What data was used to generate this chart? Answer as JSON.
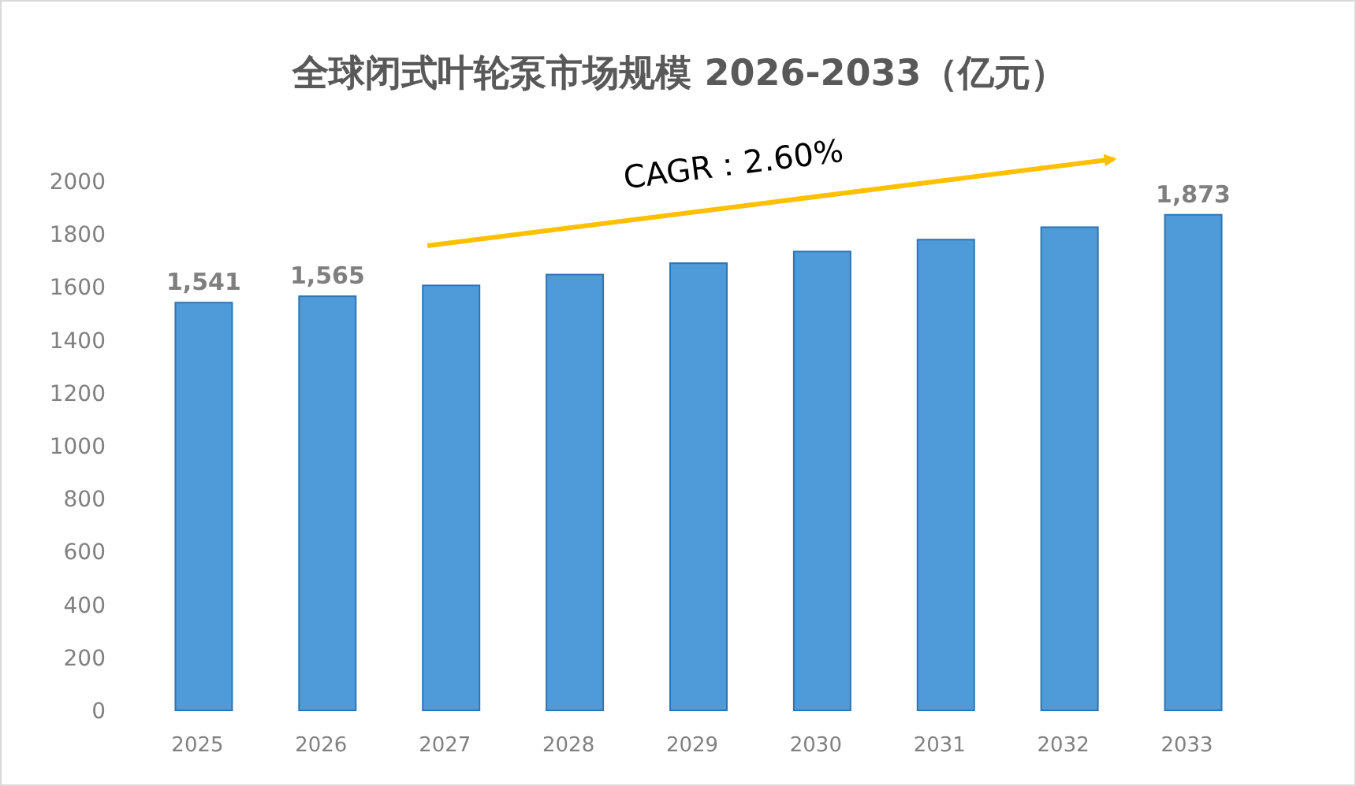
{
  "chart_data": {
    "type": "bar",
    "title": "全球闭式叶轮泵市场规模 2026-2033（亿元）",
    "categories": [
      "2025",
      "2026",
      "2027",
      "2028",
      "2029",
      "2030",
      "2031",
      "2032",
      "2033"
    ],
    "values": [
      1541,
      1565,
      1606,
      1647,
      1690,
      1734,
      1779,
      1826,
      1873
    ],
    "value_labels": [
      "1,541",
      "1,565",
      null,
      null,
      null,
      null,
      null,
      null,
      "1,873"
    ],
    "color": "#4f9bd9",
    "ylim": [
      0,
      2000
    ],
    "yticks": [
      0,
      200,
      400,
      600,
      800,
      1000,
      1200,
      1400,
      1600,
      1800,
      2000
    ],
    "annotations": [
      "CAGR：2.60%"
    ]
  }
}
